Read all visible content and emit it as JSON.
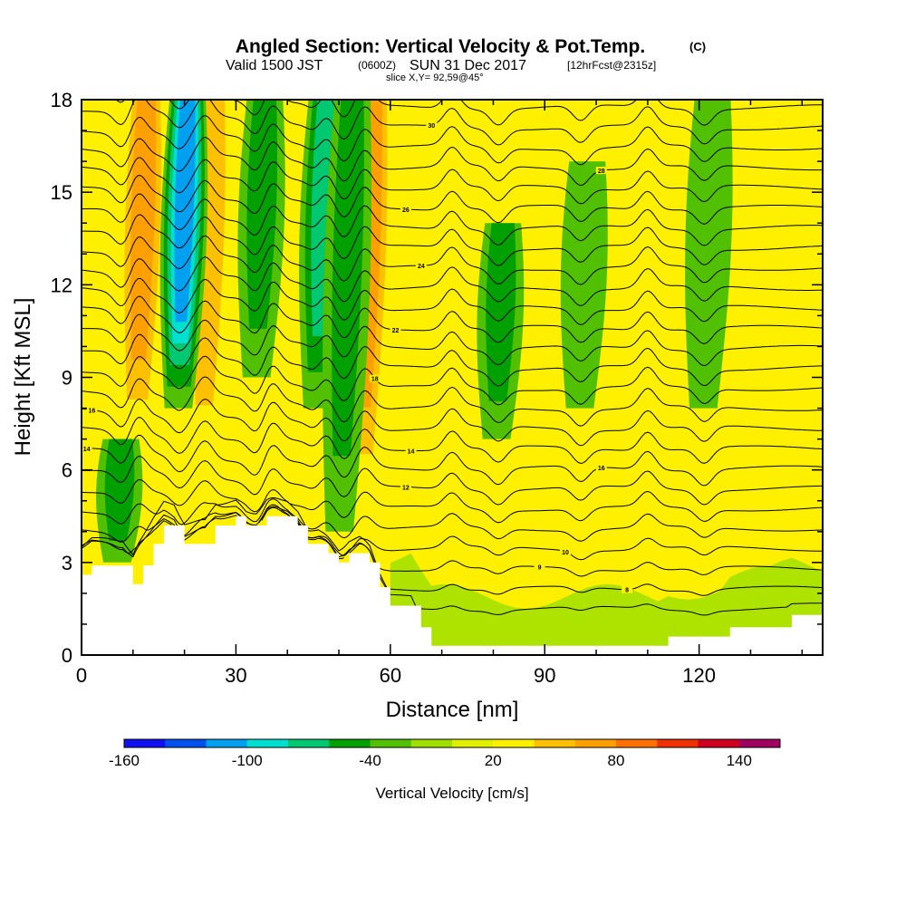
{
  "header": {
    "title": "Angled Section: Vertical Velocity & Pot.Temp.",
    "title_mark": "(C)",
    "valid_prefix": "Valid 1500 JST",
    "valid_utc": "(0600Z)",
    "valid_date": "SUN 31 Dec 2017",
    "forecast": "[12hrFcst@2315z]",
    "slice": "slice X,Y= 92,59@45°"
  },
  "chart_data": {
    "type": "heatmap",
    "xlabel": "Distance [nm]",
    "ylabel": "Height [Kft MSL]",
    "xlim": [
      0,
      144
    ],
    "ylim": [
      0,
      18
    ],
    "xticks": [
      0,
      30,
      60,
      90,
      120
    ],
    "yticks": [
      0,
      3,
      6,
      9,
      12,
      15,
      18
    ],
    "colorbar": {
      "label": "Vertical Velocity [cm/s]",
      "ticks": [
        -160,
        -100,
        -40,
        20,
        80,
        140
      ],
      "levels": [
        -160,
        -140,
        -120,
        -100,
        -80,
        -60,
        -40,
        -20,
        0,
        20,
        40,
        60,
        80,
        100,
        120,
        140,
        160
      ],
      "colors": [
        "#1010f0",
        "#0050f0",
        "#00a0f0",
        "#00e0d0",
        "#00c870",
        "#00a000",
        "#50c000",
        "#a0e000",
        "#e0f000",
        "#fff000",
        "#ffc000",
        "#ffa000",
        "#ff7000",
        "#f03000",
        "#d00020",
        "#a00060",
        "#6010a0"
      ]
    },
    "terrain_kft": [
      [
        0,
        2.6
      ],
      [
        2,
        2.9
      ],
      [
        8,
        2.9
      ],
      [
        10,
        2.3
      ],
      [
        12,
        2.9
      ],
      [
        14,
        3.6
      ],
      [
        16,
        4.2
      ],
      [
        18,
        4.2
      ],
      [
        20,
        3.6
      ],
      [
        24,
        3.6
      ],
      [
        26,
        4.2
      ],
      [
        30,
        4.5
      ],
      [
        32,
        4.2
      ],
      [
        34,
        4.2
      ],
      [
        36,
        4.5
      ],
      [
        40,
        4.5
      ],
      [
        42,
        4.2
      ],
      [
        44,
        3.6
      ],
      [
        46,
        3.6
      ],
      [
        48,
        3.3
      ],
      [
        50,
        3.0
      ],
      [
        52,
        3.3
      ],
      [
        54,
        3.3
      ],
      [
        56,
        3.0
      ],
      [
        58,
        2.2
      ],
      [
        60,
        1.6
      ],
      [
        64,
        1.6
      ],
      [
        66,
        0.9
      ],
      [
        68,
        0.3
      ],
      [
        112,
        0.3
      ],
      [
        114,
        0.6
      ],
      [
        124,
        0.6
      ],
      [
        126,
        0.9
      ],
      [
        134,
        0.9
      ],
      [
        138,
        1.3
      ],
      [
        144,
        1.3
      ]
    ],
    "updrafts": [
      {
        "x": 11,
        "w": 60,
        "top": 18,
        "bottom": 7
      },
      {
        "x": 24,
        "w": 30,
        "top": 18,
        "bottom": 6
      },
      {
        "x": 37,
        "w": 25,
        "top": 18,
        "bottom": 4.5
      },
      {
        "x": 55,
        "w": 60,
        "top": 18,
        "bottom": 5
      },
      {
        "x": 47,
        "w": 25,
        "top": 7,
        "bottom": 3.5
      },
      {
        "x": 72,
        "w": 20,
        "top": 18,
        "bottom": 8
      },
      {
        "x": 110,
        "w": 15,
        "top": 18,
        "bottom": 9
      }
    ],
    "downdrafts": [
      {
        "x": 19,
        "w": -100,
        "top": 18,
        "bottom": 8
      },
      {
        "x": 34,
        "w": -40,
        "top": 18,
        "bottom": 9
      },
      {
        "x": 46,
        "w": -55,
        "top": 18,
        "bottom": 8
      },
      {
        "x": 51,
        "w": -40,
        "top": 18,
        "bottom": 4
      },
      {
        "x": 81,
        "w": -40,
        "top": 14,
        "bottom": 7
      },
      {
        "x": 8,
        "w": -40,
        "top": 7,
        "bottom": 3
      },
      {
        "x": 97,
        "w": -20,
        "top": 16,
        "bottom": 8
      },
      {
        "x": 121,
        "w": -20,
        "top": 18,
        "bottom": 8
      }
    ],
    "isentropes": {
      "count": 26,
      "base_kft": 1.5,
      "spacing_kft": 0.65,
      "value_labels": [
        {
          "text": "9",
          "x": 89,
          "level": 2
        },
        {
          "text": "8",
          "x": 106,
          "level": 1
        },
        {
          "text": "10",
          "x": 94,
          "level": 3
        },
        {
          "text": "12",
          "x": 63,
          "level": 6
        },
        {
          "text": "14",
          "x": 64,
          "level": 8
        },
        {
          "text": "16",
          "x": 101,
          "level": 7
        },
        {
          "text": "18",
          "x": 57,
          "level": 11
        },
        {
          "text": "16",
          "x": 2,
          "level": 9
        },
        {
          "text": "14",
          "x": 1,
          "level": 7
        },
        {
          "text": "22",
          "x": 61,
          "level": 14
        },
        {
          "text": "24",
          "x": 66,
          "level": 17
        },
        {
          "text": "26",
          "x": 63,
          "level": 20
        },
        {
          "text": "28",
          "x": 101,
          "level": 22
        },
        {
          "text": "30",
          "x": 68,
          "level": 24
        }
      ]
    }
  }
}
